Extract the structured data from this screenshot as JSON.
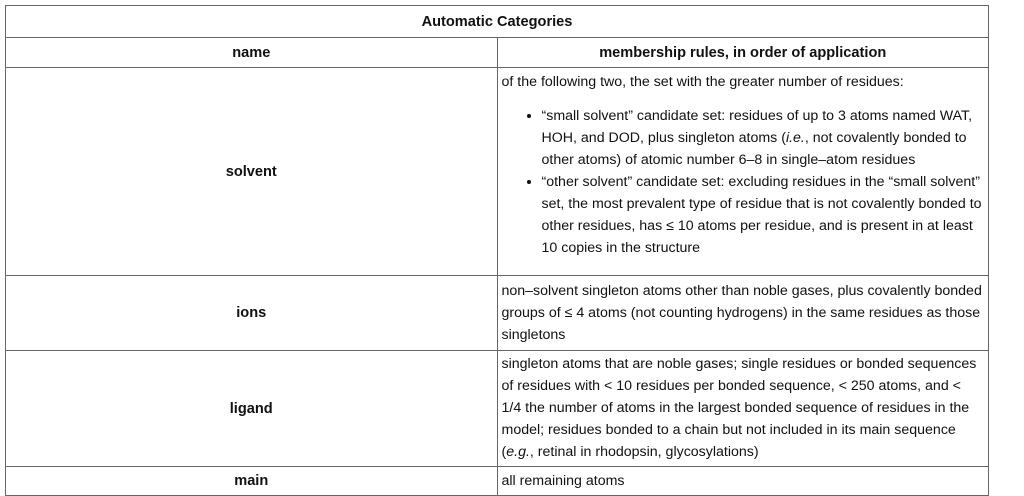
{
  "table": {
    "caption": "Automatic Categories",
    "headers": {
      "name": "name",
      "rules": "membership rules, in order of application"
    },
    "solvent": {
      "name": "solvent",
      "intro": "of the following two, the set with the greater number of residues:",
      "bullet1_a": "“small solvent” candidate set: residues of up to 3 atoms named WAT, HOH, and DOD, plus singleton atoms (",
      "bullet1_ie": "i.e.",
      "bullet1_b": ", not covalently bonded to other atoms) of atomic number 6–8 in single–atom residues",
      "bullet2": "“other solvent” candidate set: excluding residues in the “small solvent” set, the most prevalent type of residue that is not covalently bonded to other residues, has ≤ 10 atoms per residue, and is present in at least 10 copies in the structure"
    },
    "ions": {
      "name": "ions",
      "rule": "non–solvent singleton atoms other than noble gases, plus covalently bonded groups of ≤ 4 atoms (not counting hydrogens) in the same residues as those singletons"
    },
    "ligand": {
      "name": "ligand",
      "rule_a": "singleton atoms that are noble gases; single residues or bonded sequences of residues with < 10 residues per bonded sequence, < 250 atoms, and < 1/4 the number of atoms in the largest bonded sequence of residues in the model; residues bonded to a chain but not included in its main sequence (",
      "rule_eg": "e.g.",
      "rule_b": ", retinal in rhodopsin, glycosylations)"
    },
    "main": {
      "name": "main",
      "rule": "all remaining atoms"
    }
  }
}
